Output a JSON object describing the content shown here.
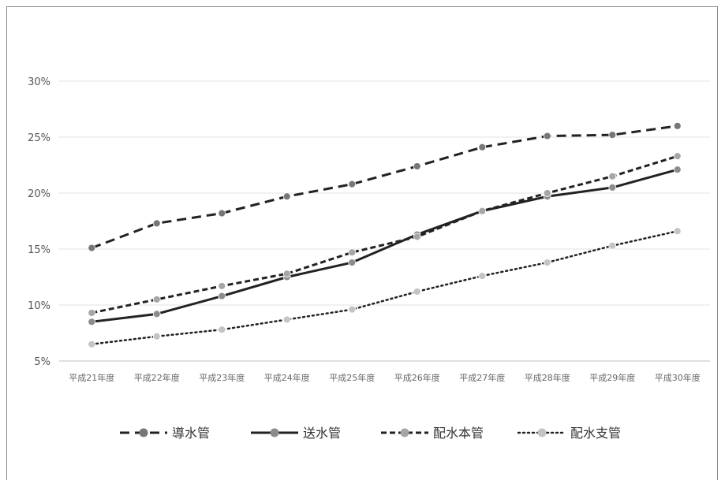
{
  "chart_data": {
    "type": "line",
    "categories": [
      "平成21年度",
      "平成22年度",
      "平成23年度",
      "平成24年度",
      "平成25年度",
      "平成26年度",
      "平成27年度",
      "平成28年度",
      "平成29年度",
      "平成30年度"
    ],
    "y_ticks": [
      "5%",
      "10%",
      "15%",
      "20%",
      "25%",
      "30%"
    ],
    "ylim": [
      5,
      30
    ],
    "grid": true,
    "legend_position": "bottom",
    "series": [
      {
        "name": "導水管",
        "values": [
          15.1,
          17.3,
          18.2,
          19.7,
          20.8,
          22.4,
          24.1,
          25.1,
          25.2,
          26.0
        ],
        "line_style": "dashed",
        "line_color": "#222222",
        "marker_color": "#777777"
      },
      {
        "name": "送水管",
        "values": [
          8.5,
          9.2,
          10.8,
          12.5,
          13.8,
          16.3,
          18.4,
          19.7,
          20.5,
          22.1
        ],
        "line_style": "solid",
        "line_color": "#222222",
        "marker_color": "#8c8c8c"
      },
      {
        "name": "配水本管",
        "values": [
          9.3,
          10.5,
          11.7,
          12.8,
          14.7,
          16.1,
          18.4,
          20.0,
          21.5,
          23.3
        ],
        "line_style": "dashed-short",
        "line_color": "#222222",
        "marker_color": "#a6a6a6"
      },
      {
        "name": "配水支管",
        "values": [
          6.5,
          7.2,
          7.8,
          8.7,
          9.6,
          11.2,
          12.6,
          13.8,
          15.3,
          16.6
        ],
        "line_style": "dotted",
        "line_color": "#222222",
        "marker_color": "#c4c4c4"
      }
    ]
  }
}
